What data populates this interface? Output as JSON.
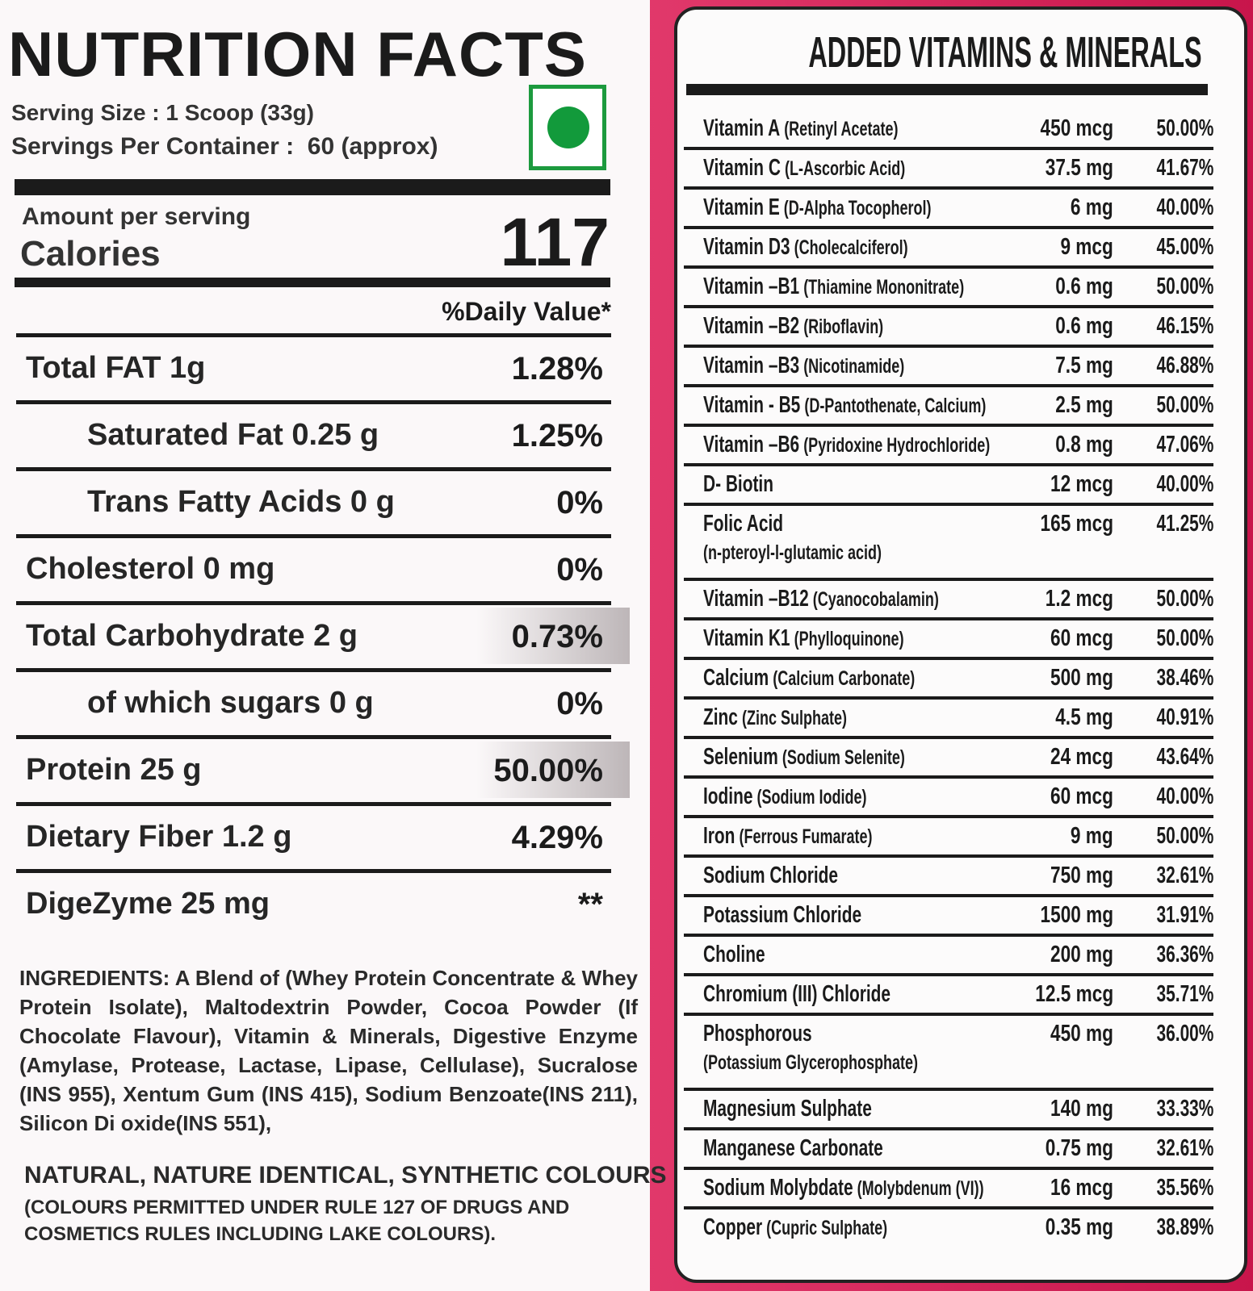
{
  "nutrition_facts": {
    "title": "NUTRITION FACTS",
    "serving_size": "Serving Size : 1 Scoop (33g)",
    "servings_per_container": "Servings Per Container :  60 (approx)",
    "amount_per_serving": "Amount per serving",
    "calories_label": "Calories",
    "calories": "117",
    "daily_value_header": "%Daily Value*",
    "rows": [
      {
        "label": "Total FAT 1g",
        "daily_value": "1.28%"
      },
      {
        "label": "Saturated Fat 0.25 g",
        "daily_value": "1.25%"
      },
      {
        "label": "Trans Fatty Acids 0 g",
        "daily_value": "0%"
      },
      {
        "label": "Cholesterol 0 mg",
        "daily_value": "0%"
      },
      {
        "label": "Total Carbohydrate 2 g",
        "daily_value": "0.73%"
      },
      {
        "label": "of which sugars 0 g",
        "daily_value": "0%"
      },
      {
        "label": "Protein 25 g",
        "daily_value": "50.00%"
      },
      {
        "label": "Dietary Fiber 1.2 g",
        "daily_value": "4.29%"
      },
      {
        "label": "DigeZyme 25 mg",
        "daily_value": "**"
      }
    ],
    "ingredients": "INGREDIENTS: A Blend of (Whey Protein Concentrate & Whey Protein Isolate), Maltodextrin Powder, Cocoa Powder (If Chocolate Flavour), Vitamin & Minerals, Digestive Enzyme (Amylase, Protease, Lactase, Lipase, Cellulase), Sucralose (INS 955), Xentum Gum (INS 415), Sodium Benzoate(INS 211), Silicon Di oxide(INS 551),",
    "colours_heading": "NATURAL, NATURE IDENTICAL, SYNTHETIC COLOURS",
    "colours_note": "(COLOURS PERMITTED UNDER RULE 127 OF DRUGS AND COSMETICS RULES INCLUDING LAKE COLOURS)."
  },
  "vitamins_minerals": {
    "title": "ADDED VITAMINS & MINERALS",
    "rows": [
      {
        "name": "Vitamin A",
        "note": "(Retinyl  Acetate)",
        "amount": "450 mcg",
        "daily_value": "50.00%"
      },
      {
        "name": "Vitamin C",
        "note": "(L-Ascorbic Acid)",
        "amount": "37.5 mg",
        "daily_value": "41.67%"
      },
      {
        "name": "Vitamin E",
        "note": "(D-Alpha Tocopherol)",
        "amount": "6 mg",
        "daily_value": "40.00%"
      },
      {
        "name": "Vitamin D3",
        "note": "(Cholecalciferol)",
        "amount": "9 mcg",
        "daily_value": "45.00%"
      },
      {
        "name": "Vitamin –B1",
        "note": "(Thiamine Mononitrate)",
        "amount": "0.6 mg",
        "daily_value": "50.00%"
      },
      {
        "name": "Vitamin –B2",
        "note": "(Riboflavin)",
        "amount": "0.6 mg",
        "daily_value": "46.15%"
      },
      {
        "name": "Vitamin –B3",
        "note": "(Nicotinamide)",
        "amount": "7.5 mg",
        "daily_value": "46.88%"
      },
      {
        "name": "Vitamin - B5",
        "note": "(D-Pantothenate, Calcium)",
        "amount": "2.5 mg",
        "daily_value": "50.00%"
      },
      {
        "name": "Vitamin –B6",
        "note": "(Pyridoxine Hydrochloride)",
        "amount": "0.8 mg",
        "daily_value": "47.06%"
      },
      {
        "name": "D- Biotin",
        "amount": "12 mcg",
        "daily_value": "40.00%"
      },
      {
        "name": "Folic Acid",
        "note": "(n-pteroyl-l-glutamic acid)",
        "amount": "165 mcg",
        "daily_value": "41.25%"
      },
      {
        "name": "Vitamin –B12",
        "note": "(Cyanocobalamin)",
        "amount": "1.2 mcg",
        "daily_value": "50.00%"
      },
      {
        "name": "Vitamin K1",
        "note": "(Phylloquinone)",
        "amount": "60 mcg",
        "daily_value": "50.00%"
      },
      {
        "name": "Calcium",
        "note": "(Calcium Carbonate)",
        "amount": "500 mg",
        "daily_value": "38.46%"
      },
      {
        "name": "Zinc",
        "note": "(Zinc Sulphate)",
        "amount": "4.5 mg",
        "daily_value": "40.91%"
      },
      {
        "name": "Selenium",
        "note": "(Sodium Selenite)",
        "amount": "24 mcg",
        "daily_value": "43.64%"
      },
      {
        "name": "Iodine",
        "note": "(Sodium Iodide)",
        "amount": "60 mcg",
        "daily_value": "40.00%"
      },
      {
        "name": "Iron",
        "note": "(Ferrous Fumarate)",
        "amount": "9 mg",
        "daily_value": "50.00%"
      },
      {
        "name": "Sodium Chloride",
        "amount": "750 mg",
        "daily_value": "32.61%"
      },
      {
        "name": "Potassium Chloride",
        "amount": "1500 mg",
        "daily_value": "31.91%"
      },
      {
        "name": "Choline",
        "amount": "200 mg",
        "daily_value": "36.36%"
      },
      {
        "name": "Chromium (III) Chloride",
        "amount": "12.5 mcg",
        "daily_value": "35.71%"
      },
      {
        "name": "Phosphorous",
        "note": "(Potassium Glycerophosphate)",
        "amount": "450 mg",
        "daily_value": "36.00%"
      },
      {
        "name": "Magnesium Sulphate",
        "amount": "140 mg",
        "daily_value": "33.33%"
      },
      {
        "name": "Manganese Carbonate",
        "amount": "0.75 mg",
        "daily_value": "32.61%"
      },
      {
        "name": "Sodium Molybdate",
        "note": "(Molybdenum (VI))",
        "amount": "16 mcg",
        "daily_value": "35.56%"
      },
      {
        "name": "Copper",
        "note": "(Cupric Sulphate)",
        "amount": "0.35 mg",
        "daily_value": "38.89%"
      }
    ]
  }
}
